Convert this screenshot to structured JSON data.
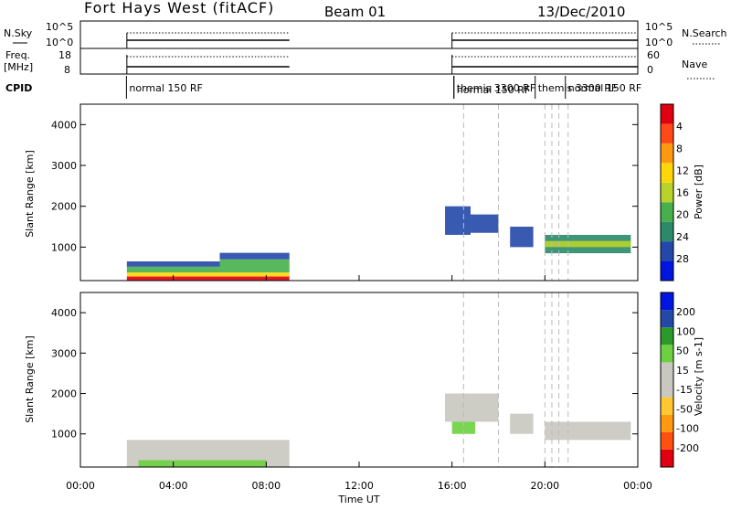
{
  "header": {
    "station": "Fort Hays West (fitACF)",
    "beam": "Beam 01",
    "date": "13/Dec/2010"
  },
  "chart_data": [
    {
      "type": "line",
      "panel": "nsky-nsearch",
      "left_label": "N.Sky",
      "right_label": "N.Search",
      "left_ticks": [
        "10^5",
        "10^0"
      ],
      "right_ticks": [
        "10^5",
        "10^0"
      ],
      "segments_hours": [
        [
          2.0,
          9.0
        ],
        [
          16.0,
          24.0
        ]
      ]
    },
    {
      "type": "line",
      "panel": "freq-nave",
      "left_label": "Freq.",
      "left_unit": "[MHz]",
      "right_label": "Nave",
      "left_ticks": [
        18,
        8
      ],
      "right_ticks": [
        60,
        0
      ],
      "segments_hours": [
        [
          2.0,
          9.0
        ],
        [
          16.0,
          24.0
        ]
      ]
    },
    {
      "type": "table",
      "panel": "cpid",
      "label": "CPID",
      "mode_labels": [
        {
          "hour": 2.1,
          "text": "normal 150 RF"
        },
        {
          "hour": 16.2,
          "text": "themis 3300 RF"
        },
        {
          "hour": 16.2,
          "text": "normal 150 RF"
        },
        {
          "hour": 19.7,
          "text": "themis 3300 RF"
        },
        {
          "hour": 21.0,
          "text": "normal 150 RF"
        }
      ]
    },
    {
      "type": "heatmap",
      "panel": "power",
      "ylabel": "Slant Range [km]",
      "xlim_hours": [
        0,
        24
      ],
      "ylim": [
        180,
        4500
      ],
      "yticks": [
        1000,
        2000,
        3000,
        4000
      ],
      "colorbar_label": "Power [dB]",
      "colorbar_ticks": [
        "4",
        "8",
        "12",
        "16",
        "20",
        "24",
        "28"
      ],
      "colors": [
        "#0016e0",
        "#2448a8",
        "#2b8a6a",
        "#47b04a",
        "#b8d42a",
        "#ffd60a",
        "#ff9a10",
        "#ff4a18",
        "#e00010"
      ],
      "patches": [
        {
          "h0": 2.0,
          "h1": 9.0,
          "r0": 180,
          "r1": 280,
          "level": 8
        },
        {
          "h0": 2.0,
          "h1": 9.0,
          "r0": 280,
          "r1": 380,
          "level": 5
        },
        {
          "h0": 2.0,
          "h1": 6.0,
          "r0": 380,
          "r1": 520,
          "level": 3
        },
        {
          "h0": 2.0,
          "h1": 6.0,
          "r0": 520,
          "r1": 650,
          "level": 1
        },
        {
          "h0": 6.0,
          "h1": 9.0,
          "r0": 380,
          "r1": 700,
          "level": 3
        },
        {
          "h0": 6.0,
          "h1": 9.0,
          "r0": 700,
          "r1": 860,
          "level": 1
        },
        {
          "h0": 15.7,
          "h1": 16.8,
          "r0": 1300,
          "r1": 2000,
          "level": 1
        },
        {
          "h0": 16.8,
          "h1": 18.0,
          "r0": 1350,
          "r1": 1800,
          "level": 1
        },
        {
          "h0": 18.5,
          "h1": 19.5,
          "r0": 1000,
          "r1": 1500,
          "level": 1
        },
        {
          "h0": 20.0,
          "h1": 23.7,
          "r0": 850,
          "r1": 1300,
          "level": 2
        },
        {
          "h0": 20.0,
          "h1": 23.7,
          "r0": 1000,
          "r1": 1150,
          "level": 4
        }
      ]
    },
    {
      "type": "heatmap",
      "panel": "velocity",
      "ylabel": "Slant Range [km]",
      "xlabel": "Time UT",
      "xlim_hours": [
        0,
        24
      ],
      "xticks": [
        "00:00",
        "04:00",
        "08:00",
        "12:00",
        "16:00",
        "20:00",
        "00:00"
      ],
      "ylim": [
        180,
        4500
      ],
      "yticks": [
        1000,
        2000,
        3000,
        4000
      ],
      "colorbar_label": "Velocity [m s-1]",
      "colorbar_ticks": [
        "200",
        "100",
        "50",
        "15",
        "-15",
        "-50",
        "-100",
        "-200"
      ],
      "colors": [
        "#e00010",
        "#ff5010",
        "#ff9a10",
        "#ffc830",
        "#c8c8c0",
        "#c8c8c0",
        "#6cd040",
        "#2b9a2a",
        "#2448a8",
        "#0016e0"
      ],
      "patches": [
        {
          "h0": 2.0,
          "h1": 9.0,
          "r0": 180,
          "r1": 850,
          "level": 4
        },
        {
          "h0": 2.5,
          "h1": 8.0,
          "r0": 180,
          "r1": 350,
          "level": 6
        },
        {
          "h0": 15.7,
          "h1": 18.0,
          "r0": 1300,
          "r1": 2000,
          "level": 4
        },
        {
          "h0": 16.0,
          "h1": 17.0,
          "r0": 1000,
          "r1": 1300,
          "level": 6
        },
        {
          "h0": 18.5,
          "h1": 19.5,
          "r0": 1000,
          "r1": 1500,
          "level": 4
        },
        {
          "h0": 20.0,
          "h1": 23.7,
          "r0": 850,
          "r1": 1300,
          "level": 4
        }
      ]
    }
  ]
}
